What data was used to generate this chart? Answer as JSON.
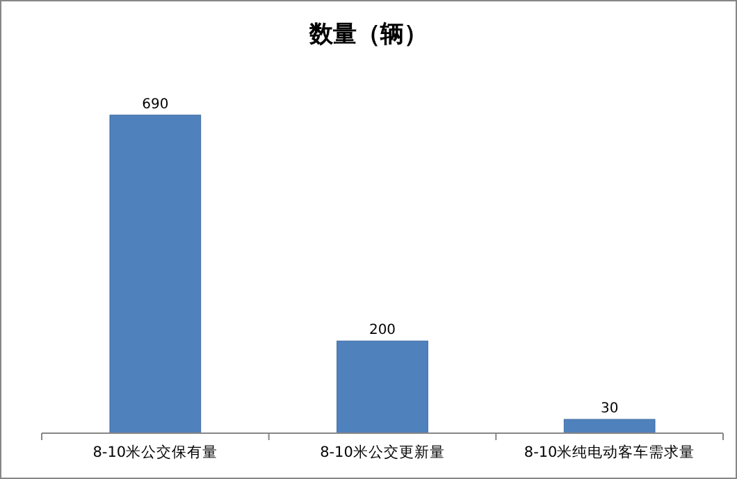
{
  "chart_data": {
    "type": "bar",
    "title": "数量（辆）",
    "categories": [
      "8-10米公交保有量",
      "8-10米公交更新量",
      "8-10米纯电动客车需求量"
    ],
    "values": [
      690,
      200,
      30
    ],
    "color": "#4f81bd",
    "data_labels": true
  }
}
